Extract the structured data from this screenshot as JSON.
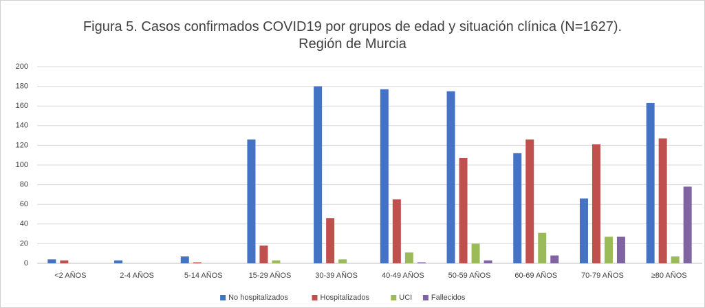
{
  "chart_data": {
    "type": "bar",
    "title": "Figura 5. Casos confirmados COVID19 por grupos de edad y situación clínica (N=1627).\nRegión de Murcia",
    "categories": [
      "<2 AÑOS",
      "2-4 AÑOS",
      "5-14 AÑOS",
      "15-29 AÑOS",
      "30-39 AÑOS",
      "40-49 AÑOS",
      "50-59 AÑOS",
      "60-69 AÑOS",
      "70-79 AÑOS",
      "≥80 AÑOS"
    ],
    "series": [
      {
        "name": "No hospitalizados",
        "color": "#4472c4",
        "values": [
          4,
          3,
          7,
          126,
          180,
          177,
          175,
          112,
          66,
          163
        ]
      },
      {
        "name": "Hospitalizados",
        "color": "#c0504d",
        "values": [
          3,
          0,
          1,
          18,
          46,
          65,
          107,
          126,
          121,
          127
        ]
      },
      {
        "name": "UCI",
        "color": "#9bbb59",
        "values": [
          0,
          0,
          0,
          3,
          4,
          11,
          20,
          31,
          27,
          7
        ]
      },
      {
        "name": "Fallecidos",
        "color": "#8064a2",
        "values": [
          0,
          0,
          0,
          0,
          0,
          1,
          3,
          8,
          27,
          78
        ]
      }
    ],
    "ylim": [
      0,
      200
    ],
    "yticks": [
      0,
      20,
      40,
      60,
      80,
      100,
      120,
      140,
      160,
      180,
      200
    ],
    "grid": true,
    "legend": "bottom"
  }
}
